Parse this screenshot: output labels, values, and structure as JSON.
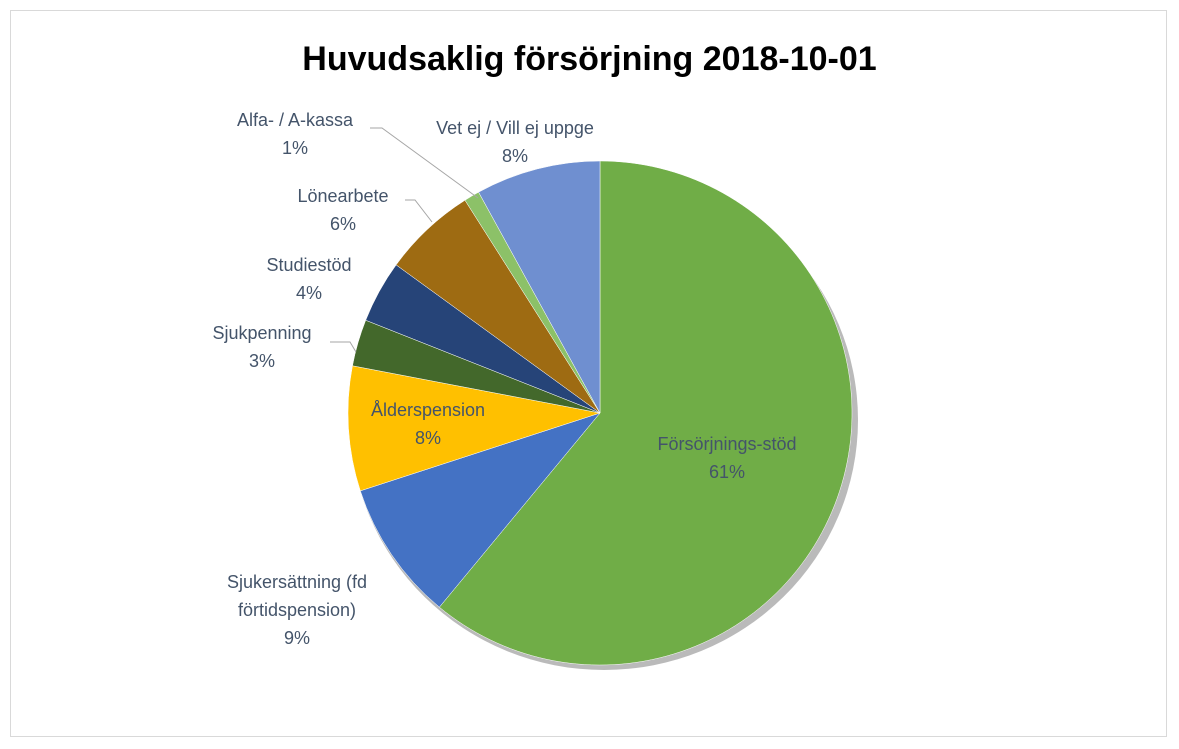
{
  "chart_data": {
    "type": "pie",
    "title": "Huvudsaklig försörjning 2018-10-01",
    "categories": [
      "Försörjnings-stöd",
      "Sjukersättning (fd förtidspension)",
      "Ålderspension",
      "Sjukpenning",
      "Studiestöd",
      "Lönearbete",
      "Alfa- / A-kassa",
      "Vet ej / Vill ej uppge"
    ],
    "values": [
      61,
      9,
      8,
      3,
      4,
      6,
      1,
      8
    ],
    "value_labels": [
      "61%",
      "9%",
      "8%",
      "3%",
      "4%",
      "6%",
      "1%",
      "8%"
    ],
    "colors": [
      "#70ad47",
      "#4472c4",
      "#ffc000",
      "#43682b",
      "#264478",
      "#9e6b12",
      "#8cc168",
      "#6f8fd0"
    ]
  }
}
